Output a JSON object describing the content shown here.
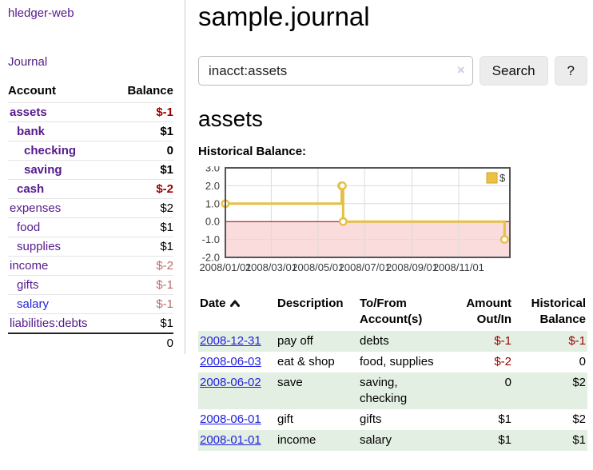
{
  "colors": {
    "link_purple": "#551a8b",
    "link_blue": "#2222dd",
    "negative_strong": "#990000",
    "negative_muted": "#c06a6a",
    "row_green": "#e3efe3",
    "series_gold": "#e6bf45"
  },
  "sidebar": {
    "app_title": "hledger-web",
    "journal_link": "Journal",
    "accounts_table": {
      "headers": {
        "account": "Account",
        "balance": "Balance"
      },
      "rows": [
        {
          "name": "assets",
          "depth": 1,
          "bold": true,
          "balance": "$-1",
          "neg": "strong",
          "link": "purple"
        },
        {
          "name": "bank",
          "depth": 2,
          "bold": true,
          "balance": "$1",
          "neg": "none",
          "link": "purple"
        },
        {
          "name": "checking",
          "depth": 3,
          "bold": true,
          "balance": "0",
          "neg": "none",
          "link": "purple"
        },
        {
          "name": "saving",
          "depth": 3,
          "bold": true,
          "balance": "$1",
          "neg": "none",
          "link": "purple"
        },
        {
          "name": "cash",
          "depth": 2,
          "bold": true,
          "balance": "$-2",
          "neg": "strong",
          "link": "purple"
        },
        {
          "name": "expenses",
          "depth": 1,
          "bold": false,
          "balance": "$2",
          "neg": "none",
          "link": "purple"
        },
        {
          "name": "food",
          "depth": 2,
          "bold": false,
          "balance": "$1",
          "neg": "none",
          "link": "purple"
        },
        {
          "name": "supplies",
          "depth": 2,
          "bold": false,
          "balance": "$1",
          "neg": "none",
          "link": "purple"
        },
        {
          "name": "income",
          "depth": 1,
          "bold": false,
          "balance": "$-2",
          "neg": "muted",
          "link": "purple"
        },
        {
          "name": "gifts",
          "depth": 2,
          "bold": false,
          "balance": "$-1",
          "neg": "muted",
          "link": "purple"
        },
        {
          "name": "salary",
          "depth": 2,
          "bold": false,
          "balance": "$-1",
          "neg": "muted",
          "link": "blue"
        },
        {
          "name": "liabilities:debts",
          "depth": 1,
          "bold": false,
          "balance": "$1",
          "neg": "none",
          "link": "purple"
        }
      ],
      "total": "0"
    }
  },
  "main": {
    "title": "sample.journal",
    "search": {
      "value": "inacct:assets",
      "clear_icon": "×",
      "search_button": "Search",
      "help_button": "?"
    },
    "register": {
      "heading": "assets",
      "chart_label": "Historical Balance:",
      "table": {
        "headers": {
          "date": "Date",
          "description": "Description",
          "accounts": "To/From\nAccount(s)",
          "amount": "Amount\nOut/In",
          "balance": "Historical\nBalance"
        },
        "rows": [
          {
            "date": "2008-12-31",
            "description": "pay off",
            "accounts": "debts",
            "amount": "$-1",
            "amount_neg": true,
            "balance": "$-1",
            "balance_neg": true,
            "green": true
          },
          {
            "date": "2008-06-03",
            "description": "eat & shop",
            "accounts": "food, supplies",
            "amount": "$-2",
            "amount_neg": true,
            "balance": "0",
            "balance_neg": false,
            "green": false
          },
          {
            "date": "2008-06-02",
            "description": "save",
            "accounts": "saving, checking",
            "amount": "0",
            "amount_neg": false,
            "balance": "$2",
            "balance_neg": false,
            "green": true
          },
          {
            "date": "2008-06-01",
            "description": "gift",
            "accounts": "gifts",
            "amount": "$1",
            "amount_neg": false,
            "balance": "$2",
            "balance_neg": false,
            "green": false
          },
          {
            "date": "2008-01-01",
            "description": "income",
            "accounts": "salary",
            "amount": "$1",
            "amount_neg": false,
            "balance": "$1",
            "balance_neg": false,
            "green": true
          }
        ]
      }
    }
  },
  "chart_data": {
    "type": "line",
    "title": "Historical Balance:",
    "steps": true,
    "series": [
      {
        "name": "$",
        "color": "#e6bf45",
        "legend_square_fill": "#edc240",
        "legend_square_border": "#cda62f",
        "points": [
          {
            "date": "2008-01-01",
            "value": 1
          },
          {
            "date": "2008-06-01",
            "value": 2
          },
          {
            "date": "2008-06-02",
            "value": 2
          },
          {
            "date": "2008-06-03",
            "value": 0
          },
          {
            "date": "2008-12-31",
            "value": -1
          }
        ]
      }
    ],
    "x_ticks": [
      "2008/01/01",
      "2008/03/01",
      "2008/05/01",
      "2008/07/01",
      "2008/09/01",
      "2008/11/01"
    ],
    "y_ticks": [
      "3.0",
      "2.0",
      "1.0",
      "0.0",
      "-1.0",
      "-2.0"
    ],
    "ylim": [
      -2,
      3
    ],
    "xlim_days": [
      0,
      372
    ],
    "grid": true,
    "grid_color": "#dcdcdc",
    "border_color": "#545454",
    "axis_label_color": "#3c3c3c",
    "zero_line_color": "#a00000",
    "negative_region_color": "#fadcdc",
    "legend_position": "top-right"
  }
}
